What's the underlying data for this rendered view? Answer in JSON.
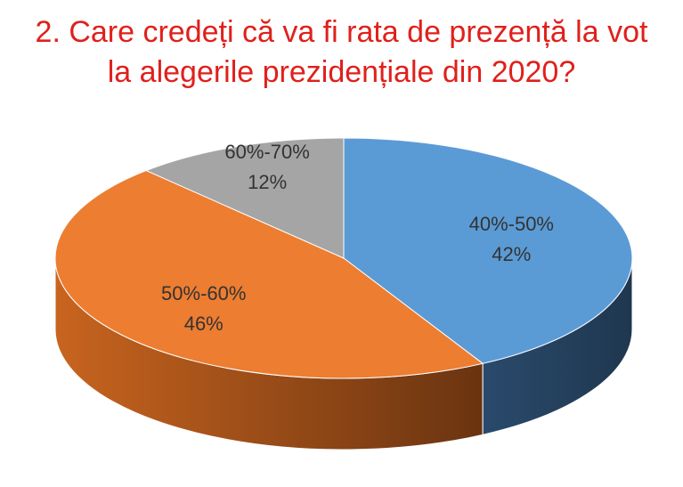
{
  "chart_data": {
    "type": "pie",
    "title_lines": [
      "2. Care credeți că va fi rata de prezență la vot",
      "la alegerile prezidențiale din 2020?"
    ],
    "slices": [
      {
        "label": "40%-50%",
        "value": 42,
        "value_label": "42%",
        "color": "#5b9bd5",
        "side_color": "#243f5c"
      },
      {
        "label": "50%-60%",
        "value": 46,
        "value_label": "46%",
        "color": "#ed7d31",
        "side_color": "#7a3d12"
      },
      {
        "label": "60%-70%",
        "value": 12,
        "value_label": "12%",
        "color": "#a5a5a5",
        "side_color": "#595959"
      }
    ],
    "legend": "none",
    "style": "3d-pie"
  }
}
